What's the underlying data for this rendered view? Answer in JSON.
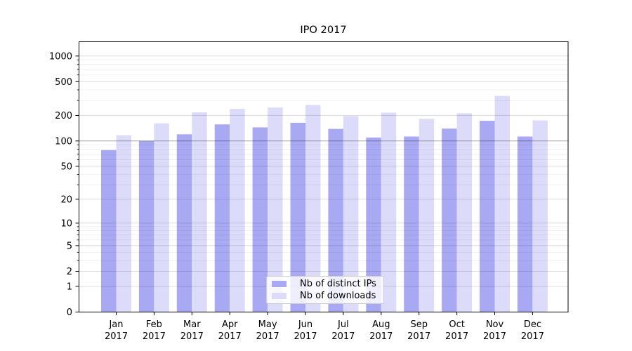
{
  "chart_data": {
    "type": "bar",
    "title": "IPO 2017",
    "categories": [
      [
        "Jan",
        "2017"
      ],
      [
        "Feb",
        "2017"
      ],
      [
        "Mar",
        "2017"
      ],
      [
        "Apr",
        "2017"
      ],
      [
        "May",
        "2017"
      ],
      [
        "Jun",
        "2017"
      ],
      [
        "Jul",
        "2017"
      ],
      [
        "Aug",
        "2017"
      ],
      [
        "Sep",
        "2017"
      ],
      [
        "Oct",
        "2017"
      ],
      [
        "Nov",
        "2017"
      ],
      [
        "Dec",
        "2017"
      ]
    ],
    "series": [
      {
        "name": "Nb of distinct IPs",
        "color": "#a9a9f3",
        "values": [
          78,
          100,
          120,
          157,
          145,
          164,
          139,
          110,
          113,
          140,
          173,
          113
        ]
      },
      {
        "name": "Nb of downloads",
        "color": "#dcdcfa",
        "values": [
          117,
          162,
          218,
          240,
          248,
          266,
          197,
          216,
          183,
          212,
          340,
          175
        ]
      }
    ],
    "yscale": "log1p",
    "ylim": [
      0,
      1468
    ],
    "y_major_ticks": [
      0,
      1,
      2,
      5,
      10,
      20,
      50,
      100,
      200,
      500,
      1000
    ],
    "y_minor_gridlines": [
      3,
      4,
      6,
      7,
      8,
      9,
      30,
      40,
      60,
      70,
      80,
      90,
      300,
      400,
      600,
      700,
      800,
      900
    ],
    "emphasized_gridline": 100,
    "grid": true,
    "legend_position": "lower center",
    "colors": {
      "grid_major": "#dddddd",
      "grid_minor": "#f1f1f1",
      "grid_emphasis": "#a6a6a6",
      "axis": "#000000",
      "background": "#ffffff"
    }
  }
}
